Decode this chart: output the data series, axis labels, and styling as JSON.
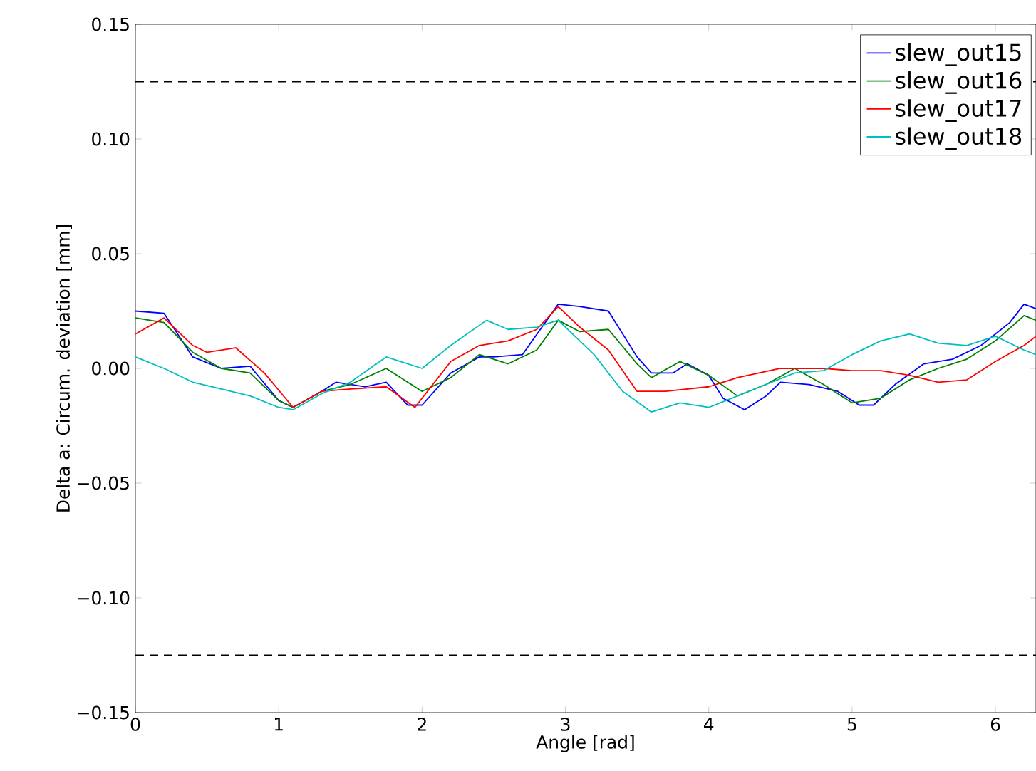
{
  "chart_data": {
    "type": "line",
    "xlabel": "Angle [rad]",
    "ylabel": "Delta a: Circum. deviation [mm]",
    "xlim": [
      0,
      6.283
    ],
    "ylim": [
      -0.15,
      0.15
    ],
    "xticks": [
      0,
      1,
      2,
      3,
      4,
      5,
      6
    ],
    "yticks": [
      {
        "value": -0.15,
        "label": "−0.15"
      },
      {
        "value": -0.1,
        "label": "−0.10"
      },
      {
        "value": -0.05,
        "label": "−0.05"
      },
      {
        "value": 0,
        "label": "0.00"
      },
      {
        "value": 0.05,
        "label": "0.05"
      },
      {
        "value": 0.1,
        "label": "0.10"
      },
      {
        "value": 0.15,
        "label": "0.15"
      }
    ],
    "legend": "top right",
    "grid": false,
    "marker": "none",
    "line_style": "solid",
    "ref_lines": [
      {
        "axis": "y",
        "value": 0.125,
        "label": null,
        "color": "#000000",
        "line_style": "dashed"
      },
      {
        "axis": "y",
        "value": -0.125,
        "label": null,
        "color": "#000000",
        "line_style": "dashed"
      }
    ],
    "series": [
      {
        "name": "slew_out15",
        "color": "#0000ff",
        "x": [
          0,
          0.2,
          0.4,
          0.6,
          0.8,
          1.0,
          1.1,
          1.3,
          1.4,
          1.6,
          1.75,
          1.9,
          2.0,
          2.2,
          2.4,
          2.5,
          2.7,
          2.95,
          3.1,
          3.3,
          3.5,
          3.6,
          3.75,
          3.85,
          4.0,
          4.1,
          4.25,
          4.4,
          4.5,
          4.7,
          4.9,
          5.05,
          5.15,
          5.3,
          5.5,
          5.7,
          5.9,
          6.1,
          6.2,
          6.283
        ],
        "values": [
          0.025,
          0.024,
          0.005,
          0.0,
          0.001,
          -0.014,
          -0.017,
          -0.01,
          -0.006,
          -0.008,
          -0.006,
          -0.016,
          -0.016,
          -0.002,
          0.005,
          0.005,
          0.006,
          0.028,
          0.027,
          0.025,
          0.005,
          -0.002,
          -0.002,
          0.002,
          -0.003,
          -0.013,
          -0.018,
          -0.012,
          -0.006,
          -0.007,
          -0.01,
          -0.016,
          -0.016,
          -0.007,
          0.002,
          0.004,
          0.01,
          0.02,
          0.028,
          0.026
        ]
      },
      {
        "name": "slew_out16",
        "color": "#008000",
        "x": [
          0,
          0.2,
          0.4,
          0.6,
          0.8,
          1.0,
          1.1,
          1.3,
          1.5,
          1.75,
          2.0,
          2.2,
          2.4,
          2.6,
          2.8,
          2.95,
          3.1,
          3.3,
          3.5,
          3.6,
          3.8,
          4.0,
          4.2,
          4.4,
          4.6,
          4.8,
          5.0,
          5.2,
          5.4,
          5.6,
          5.8,
          6.0,
          6.2,
          6.283
        ],
        "values": [
          0.022,
          0.02,
          0.007,
          0.0,
          -0.002,
          -0.014,
          -0.017,
          -0.01,
          -0.007,
          0.0,
          -0.01,
          -0.004,
          0.006,
          0.002,
          0.008,
          0.021,
          0.016,
          0.017,
          0.002,
          -0.004,
          0.003,
          -0.003,
          -0.012,
          -0.007,
          0.0,
          -0.007,
          -0.015,
          -0.013,
          -0.005,
          0.0,
          0.004,
          0.012,
          0.023,
          0.021
        ]
      },
      {
        "name": "slew_out17",
        "color": "#ff0000",
        "x": [
          0,
          0.2,
          0.4,
          0.5,
          0.7,
          0.9,
          1.1,
          1.3,
          1.5,
          1.75,
          1.95,
          2.2,
          2.4,
          2.6,
          2.8,
          2.95,
          3.1,
          3.3,
          3.5,
          3.7,
          4.0,
          4.2,
          4.5,
          4.8,
          5.0,
          5.2,
          5.4,
          5.6,
          5.8,
          6.0,
          6.2,
          6.283
        ],
        "values": [
          0.015,
          0.022,
          0.01,
          0.007,
          0.009,
          -0.002,
          -0.017,
          -0.01,
          -0.009,
          -0.008,
          -0.017,
          0.003,
          0.01,
          0.012,
          0.017,
          0.027,
          0.018,
          0.008,
          -0.01,
          -0.01,
          -0.008,
          -0.004,
          0.0,
          0.0,
          -0.001,
          -0.001,
          -0.003,
          -0.006,
          -0.005,
          0.003,
          0.01,
          0.014
        ]
      },
      {
        "name": "slew_out18",
        "color": "#00bfbf",
        "x": [
          0,
          0.2,
          0.4,
          0.6,
          0.8,
          1.0,
          1.1,
          1.3,
          1.5,
          1.75,
          2.0,
          2.2,
          2.45,
          2.6,
          2.8,
          2.95,
          3.2,
          3.4,
          3.6,
          3.8,
          4.0,
          4.2,
          4.4,
          4.6,
          4.8,
          5.0,
          5.2,
          5.4,
          5.6,
          5.8,
          6.0,
          6.2,
          6.283
        ],
        "values": [
          0.005,
          0.0,
          -0.006,
          -0.009,
          -0.012,
          -0.017,
          -0.018,
          -0.011,
          -0.006,
          0.005,
          0.0,
          0.01,
          0.021,
          0.017,
          0.018,
          0.021,
          0.006,
          -0.01,
          -0.019,
          -0.015,
          -0.017,
          -0.012,
          -0.007,
          -0.002,
          -0.001,
          0.006,
          0.012,
          0.015,
          0.011,
          0.01,
          0.014,
          0.008,
          0.006
        ]
      }
    ]
  }
}
